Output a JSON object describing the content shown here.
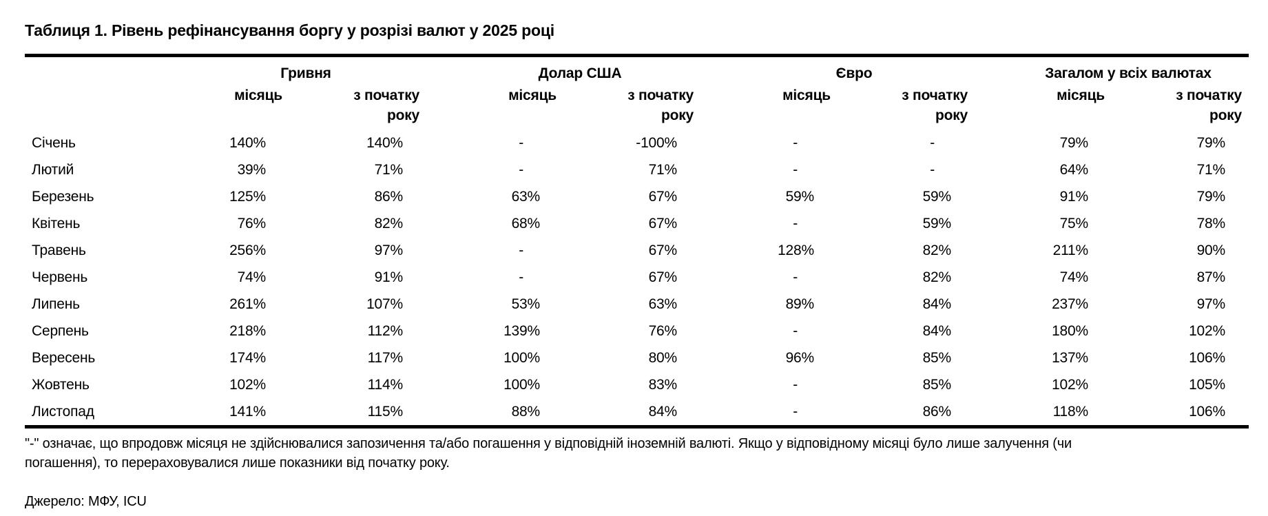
{
  "title": "Таблиця 1. Рівень рефінансування боргу у розрізі валют у 2025 році",
  "table": {
    "groups": [
      {
        "label": "Гривня"
      },
      {
        "label": "Долар США"
      },
      {
        "label": "Євро"
      },
      {
        "label": "Загалом у всіх валютах"
      }
    ],
    "sub_headers": {
      "month": "місяць",
      "ytd": "з початку\nроку"
    },
    "rows": [
      {
        "month": "Січень",
        "values": [
          "140%",
          "140%",
          "-",
          "-100%",
          "-",
          "-",
          "79%",
          "79%"
        ]
      },
      {
        "month": "Лютий",
        "values": [
          "39%",
          "71%",
          "-",
          "71%",
          "-",
          "-",
          "64%",
          "71%"
        ]
      },
      {
        "month": "Березень",
        "values": [
          "125%",
          "86%",
          "63%",
          "67%",
          "59%",
          "59%",
          "91%",
          "79%"
        ]
      },
      {
        "month": "Квітень",
        "values": [
          "76%",
          "82%",
          "68%",
          "67%",
          "-",
          "59%",
          "75%",
          "78%"
        ]
      },
      {
        "month": "Травень",
        "values": [
          "256%",
          "97%",
          "-",
          "67%",
          "128%",
          "82%",
          "211%",
          "90%"
        ]
      },
      {
        "month": "Червень",
        "values": [
          "74%",
          "91%",
          "-",
          "67%",
          "-",
          "82%",
          "74%",
          "87%"
        ]
      },
      {
        "month": "Липень",
        "values": [
          "261%",
          "107%",
          "53%",
          "63%",
          "89%",
          "84%",
          "237%",
          "97%"
        ]
      },
      {
        "month": "Серпень",
        "values": [
          "218%",
          "112%",
          "139%",
          "76%",
          "-",
          "84%",
          "180%",
          "102%"
        ]
      },
      {
        "month": "Вересень",
        "values": [
          "174%",
          "117%",
          "100%",
          "80%",
          "96%",
          "85%",
          "137%",
          "106%"
        ]
      },
      {
        "month": "Жовтень",
        "values": [
          "102%",
          "114%",
          "100%",
          "83%",
          "-",
          "85%",
          "102%",
          "105%"
        ]
      },
      {
        "month": "Листопад",
        "values": [
          "141%",
          "115%",
          "88%",
          "84%",
          "-",
          "86%",
          "118%",
          "106%"
        ]
      }
    ]
  },
  "footnote": "\"-\" означає, що впродовж місяця не здійснювалися запозичення та/або погашення у відповідній іноземній валюті. Якщо у відповідному місяці було лише залучення (чи\nпогашення), то перераховувалися лише показники від початку року.",
  "source": "Джерело: МФУ, ICU",
  "colors": {
    "text": "#000000",
    "background": "#ffffff",
    "rule": "#000000"
  }
}
